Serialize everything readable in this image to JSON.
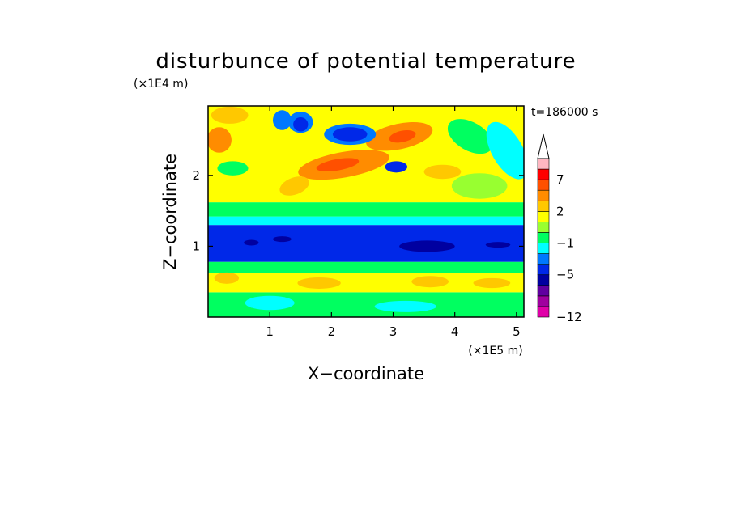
{
  "chart_data": {
    "type": "heatmap",
    "title": "disturbunce of potential temperature",
    "time_label": "t=186000 s",
    "xlabel": "X−coordinate",
    "ylabel": "Z−coordinate",
    "x_scale_label": "(×1E5 m)",
    "y_scale_label": "(×1E4 m)",
    "xlim": [
      0,
      5.12
    ],
    "ylim": [
      0,
      2.98
    ],
    "x_ticks": [
      1,
      2,
      3,
      4,
      5
    ],
    "y_ticks": [
      1,
      2
    ],
    "colorbar": {
      "levels": [
        -12,
        -11,
        -9,
        -7,
        -5,
        -4,
        -3,
        -1,
        0,
        1,
        2,
        3,
        5,
        7,
        9,
        11
      ],
      "labeled_ticks": [
        {
          "value": -12,
          "label": "−12"
        },
        {
          "value": -5,
          "label": "−5"
        },
        {
          "value": -1,
          "label": "−1"
        },
        {
          "value": 2,
          "label": "2"
        },
        {
          "value": 7,
          "label": "7"
        }
      ],
      "colors": [
        "#e000a8",
        "#a0009f",
        "#6000a0",
        "#0000a0",
        "#0028e8",
        "#0078ff",
        "#00ffff",
        "#00ff60",
        "#98ff30",
        "#ffff00",
        "#ffc800",
        "#ff8c00",
        "#ff5000",
        "#ff0000",
        "#ffb6c1"
      ],
      "extend_top": true
    },
    "bands": [
      {
        "z": [
          0.0,
          0.35
        ],
        "color": "#00ff60"
      },
      {
        "z": [
          0.35,
          0.62
        ],
        "color": "#ffff00"
      },
      {
        "z": [
          0.62,
          0.78
        ],
        "color": "#00ff60"
      },
      {
        "z": [
          0.78,
          1.3
        ],
        "color": "#0028e8"
      },
      {
        "z": [
          1.3,
          1.42
        ],
        "color": "#00ffff"
      },
      {
        "z": [
          1.42,
          1.62
        ],
        "color": "#00ff60"
      },
      {
        "z": [
          1.62,
          2.98
        ],
        "color": "#ffff00"
      }
    ],
    "features": [
      {
        "x": 3.1,
        "z": 2.55,
        "rx": 0.55,
        "rz": 0.18,
        "rot": -12,
        "color": "#ff8c00"
      },
      {
        "x": 3.15,
        "z": 2.55,
        "rx": 0.22,
        "rz": 0.08,
        "rot": -12,
        "color": "#ff5000"
      },
      {
        "x": 2.2,
        "z": 2.15,
        "rx": 0.75,
        "rz": 0.18,
        "rot": -10,
        "color": "#ff8c00"
      },
      {
        "x": 2.1,
        "z": 2.15,
        "rx": 0.35,
        "rz": 0.08,
        "rot": -10,
        "color": "#ff5000"
      },
      {
        "x": 0.18,
        "z": 2.5,
        "rx": 0.2,
        "rz": 0.18,
        "rot": 0,
        "color": "#ff8c00"
      },
      {
        "x": 0.35,
        "z": 2.85,
        "rx": 0.3,
        "rz": 0.12,
        "rot": 0,
        "color": "#ffc800"
      },
      {
        "x": 1.4,
        "z": 1.85,
        "rx": 0.25,
        "rz": 0.12,
        "rot": -20,
        "color": "#ffc800"
      },
      {
        "x": 3.8,
        "z": 2.05,
        "rx": 0.3,
        "rz": 0.1,
        "rot": 0,
        "color": "#ffc800"
      },
      {
        "x": 4.25,
        "z": 2.55,
        "rx": 0.4,
        "rz": 0.2,
        "rot": 30,
        "color": "#00ff60"
      },
      {
        "x": 4.4,
        "z": 1.85,
        "rx": 0.45,
        "rz": 0.18,
        "rot": 0,
        "color": "#98ff30"
      },
      {
        "x": 1.2,
        "z": 2.78,
        "rx": 0.15,
        "rz": 0.14,
        "rot": 0,
        "color": "#0078ff"
      },
      {
        "x": 1.5,
        "z": 2.75,
        "rx": 0.2,
        "rz": 0.15,
        "rot": 0,
        "color": "#0078ff"
      },
      {
        "x": 2.3,
        "z": 2.58,
        "rx": 0.42,
        "rz": 0.15,
        "rot": 0,
        "color": "#0078ff"
      },
      {
        "x": 1.5,
        "z": 2.72,
        "rx": 0.12,
        "rz": 0.1,
        "rot": 0,
        "color": "#0028e8"
      },
      {
        "x": 2.3,
        "z": 2.58,
        "rx": 0.28,
        "rz": 0.1,
        "rot": 0,
        "color": "#0028e8"
      },
      {
        "x": 3.05,
        "z": 2.12,
        "rx": 0.18,
        "rz": 0.08,
        "rot": 0,
        "color": "#0028e8"
      },
      {
        "x": 4.85,
        "z": 2.35,
        "rx": 0.25,
        "rz": 0.45,
        "rot": -30,
        "color": "#00ffff"
      },
      {
        "x": 0.4,
        "z": 2.1,
        "rx": 0.25,
        "rz": 0.1,
        "rot": 0,
        "color": "#00ff60"
      },
      {
        "x": 0.7,
        "z": 1.05,
        "rx": 0.12,
        "rz": 0.04,
        "rot": 0,
        "color": "#0000a0"
      },
      {
        "x": 1.2,
        "z": 1.1,
        "rx": 0.15,
        "rz": 0.04,
        "rot": 0,
        "color": "#0000a0"
      },
      {
        "x": 3.55,
        "z": 1.0,
        "rx": 0.45,
        "rz": 0.08,
        "rot": 0,
        "color": "#0000a0"
      },
      {
        "x": 4.7,
        "z": 1.02,
        "rx": 0.2,
        "rz": 0.04,
        "rot": 0,
        "color": "#0000a0"
      },
      {
        "x": 0.3,
        "z": 0.55,
        "rx": 0.2,
        "rz": 0.08,
        "rot": 0,
        "color": "#ffc800"
      },
      {
        "x": 1.8,
        "z": 0.48,
        "rx": 0.35,
        "rz": 0.08,
        "rot": 0,
        "color": "#ffc800"
      },
      {
        "x": 3.6,
        "z": 0.5,
        "rx": 0.3,
        "rz": 0.08,
        "rot": 0,
        "color": "#ffc800"
      },
      {
        "x": 4.6,
        "z": 0.48,
        "rx": 0.3,
        "rz": 0.07,
        "rot": 0,
        "color": "#ffc800"
      },
      {
        "x": 1.0,
        "z": 0.2,
        "rx": 0.4,
        "rz": 0.1,
        "rot": 0,
        "color": "#00ffff"
      },
      {
        "x": 3.2,
        "z": 0.15,
        "rx": 0.5,
        "rz": 0.08,
        "rot": 0,
        "color": "#00ffff"
      }
    ]
  }
}
